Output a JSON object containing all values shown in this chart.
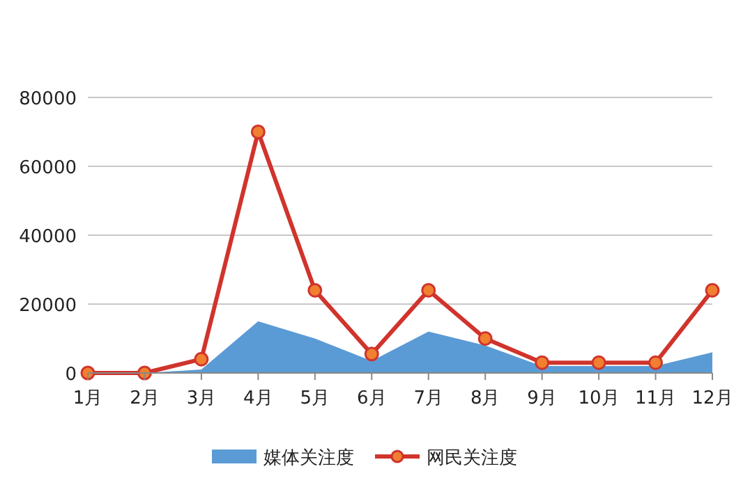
{
  "chart_data": {
    "type": "line",
    "categories": [
      "1月",
      "2月",
      "3月",
      "4月",
      "5月",
      "6月",
      "7月",
      "8月",
      "9月",
      "10月",
      "11月",
      "12月"
    ],
    "series": [
      {
        "name": "媒体关注度",
        "type": "area",
        "color": "#5b9bd5",
        "values": [
          0,
          0,
          1000,
          15000,
          10000,
          3500,
          12000,
          8000,
          2000,
          2000,
          2000,
          6000
        ]
      },
      {
        "name": "网民关注度",
        "type": "line",
        "color": "#d0342c",
        "marker": "circle",
        "values": [
          0,
          0,
          4000,
          70000,
          24000,
          5500,
          24000,
          10000,
          3000,
          3000,
          3000,
          24000
        ]
      }
    ],
    "ylim": [
      0,
      80000
    ],
    "yticks": [
      0,
      20000,
      40000,
      60000,
      80000
    ],
    "grid": "y",
    "legend": "bottom"
  }
}
